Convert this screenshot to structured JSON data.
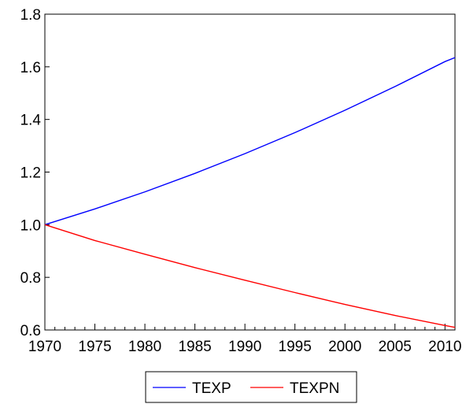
{
  "chart_data": {
    "type": "line",
    "title": "",
    "xlabel": "",
    "ylabel": "",
    "xlim": [
      1970,
      2011
    ],
    "ylim": [
      0.6,
      1.8
    ],
    "x_ticks": [
      1970,
      1975,
      1980,
      1985,
      1990,
      1995,
      2000,
      2005,
      2010
    ],
    "y_ticks": [
      0.6,
      0.8,
      1.0,
      1.2,
      1.4,
      1.6,
      1.8
    ],
    "y_tick_labels": [
      "0.6",
      "0.8",
      "1.0",
      "1.2",
      "1.4",
      "1.6",
      "1.8"
    ],
    "grid": false,
    "legend_position": "bottom-center",
    "series": [
      {
        "name": "TEXP",
        "color": "#0000ff",
        "x": [
          1970,
          1975,
          1980,
          1985,
          1990,
          1995,
          2000,
          2005,
          2010,
          2011
        ],
        "y": [
          1.0,
          1.06,
          1.125,
          1.195,
          1.27,
          1.35,
          1.435,
          1.525,
          1.62,
          1.635
        ]
      },
      {
        "name": "TEXPN",
        "color": "#ff0000",
        "x": [
          1970,
          1975,
          1980,
          1985,
          1990,
          1995,
          2000,
          2005,
          2010,
          2011
        ],
        "y": [
          1.0,
          0.94,
          0.888,
          0.837,
          0.789,
          0.742,
          0.697,
          0.655,
          0.617,
          0.61
        ]
      }
    ]
  }
}
